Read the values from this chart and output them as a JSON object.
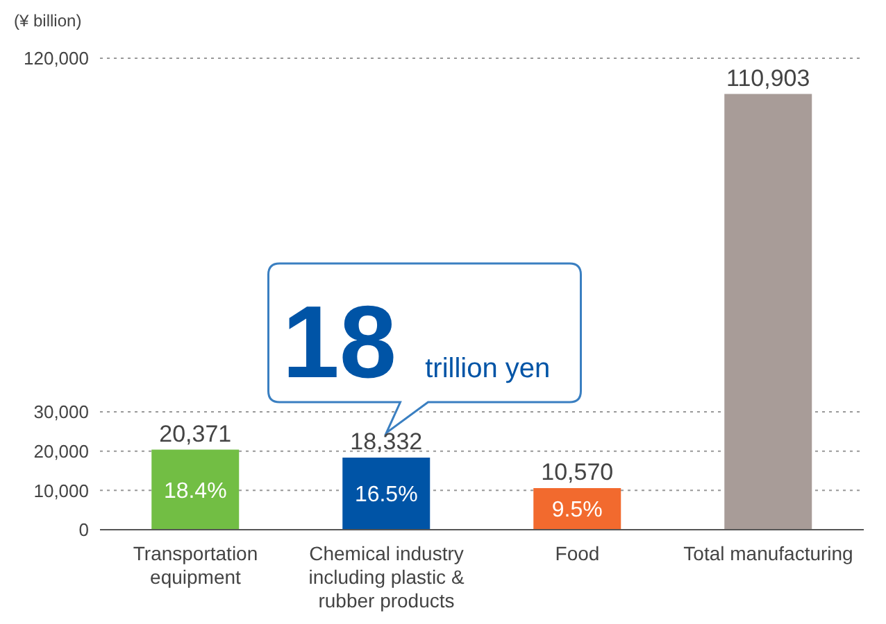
{
  "chart_data": {
    "type": "bar",
    "ylabel": "(¥ billion)",
    "categories": [
      "Transportation equipment",
      "Chemical industry including plastic & rubber products",
      "Food",
      "Total manufacturing"
    ],
    "values": [
      20371,
      18332,
      10570,
      110903
    ],
    "colors": [
      "#72be44",
      "#0054a6",
      "#f26a2e",
      "#a89c98"
    ],
    "value_labels": [
      "20,371",
      "18,332",
      "10,570",
      "110,903"
    ],
    "ylim": [
      0,
      120000
    ],
    "yticks": [
      0,
      {
        "value": 10000,
        "label": "10,000"
      },
      {
        "value": 20000,
        "label": "20,000"
      },
      {
        "value": 30000,
        "label": "30,000"
      },
      {
        "value": 120000,
        "label": "120,000"
      }
    ],
    "grid": "y",
    "annotations": [
      "18.4%",
      "16.5%",
      "9.5%",
      {
        "text": "18 trillion yen",
        "x": "Chemical industry including plastic & rubber products",
        "y": 18332
      }
    ]
  }
}
